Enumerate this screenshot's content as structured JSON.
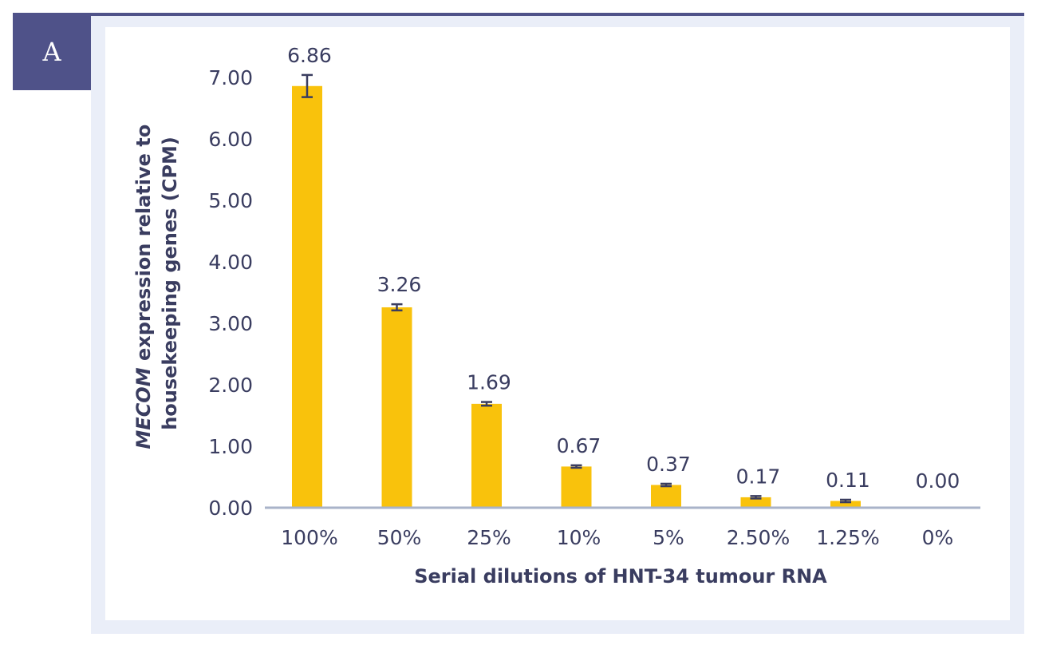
{
  "panel_label": "A",
  "colors": {
    "bar": "#f9c20c",
    "axis": "#a9b3c9",
    "error_bar": "#3a3d60",
    "text": "#3a3d60",
    "panel": "#4f5289"
  },
  "chart_data": {
    "type": "bar",
    "title": "",
    "xlabel": "Serial dilutions of HNT-34 tumour RNA",
    "ylabel_lines": [
      {
        "italic": "MECOM",
        "rest": " expression relative to"
      },
      {
        "italic": "",
        "rest": "housekeeping genes (CPM)"
      }
    ],
    "ylim": [
      0,
      7
    ],
    "y_ticks": [
      "0.00",
      "1.00",
      "2.00",
      "3.00",
      "4.00",
      "5.00",
      "6.00",
      "7.00"
    ],
    "categories": [
      "100%",
      "50%",
      "25%",
      "10%",
      "5%",
      "2.50%",
      "1.25%",
      "0%"
    ],
    "values": [
      6.86,
      3.26,
      1.69,
      0.67,
      0.37,
      0.17,
      0.11,
      0.0
    ],
    "value_labels": [
      "6.86",
      "3.26",
      "1.69",
      "0.67",
      "0.37",
      "0.17",
      "0.11",
      "0.00"
    ],
    "error": [
      0.18,
      0.05,
      0.03,
      0.02,
      0.02,
      0.02,
      0.02,
      0.0
    ],
    "grid": false
  }
}
